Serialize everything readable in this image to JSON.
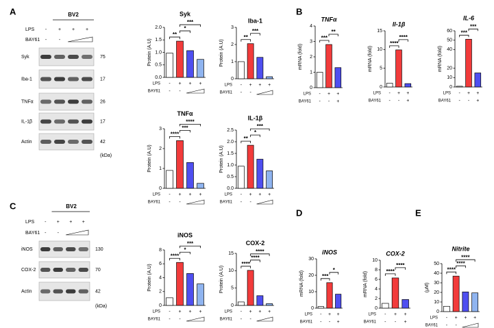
{
  "panel_labels": [
    "A",
    "B",
    "C",
    "D",
    "E"
  ],
  "blots": [
    {
      "cell_line": "BV2",
      "row_labels": [
        "LPS",
        "BAY61"
      ],
      "lps": [
        "-",
        "+",
        "+",
        "+"
      ],
      "bay61": [
        "-",
        "-",
        null,
        null
      ],
      "bands": [
        {
          "name": "Syk",
          "kda": 75
        },
        {
          "name": "Iba-1",
          "kda": 17
        },
        {
          "name": "TNFα",
          "kda": 26
        },
        {
          "name": "IL-1β",
          "kda": 17
        },
        {
          "name": "Actin",
          "kda": 42
        }
      ],
      "unit": "(kDa)"
    },
    {
      "cell_line": "BV2",
      "row_labels": [
        "LPS",
        "BAY61"
      ],
      "lps": [
        "-",
        "+",
        "+",
        "+"
      ],
      "bay61": [
        "-",
        "-",
        null,
        null
      ],
      "bands": [
        {
          "name": "iNOS",
          "kda": 130
        },
        {
          "name": "COX-2",
          "kda": 70
        },
        {
          "name": "Actin",
          "kda": 42
        }
      ],
      "unit": "(kDa)"
    }
  ],
  "chart_data": [
    {
      "type": "bar",
      "title": "Syk",
      "y_label": "Protein (A.U)",
      "row_labels": [
        "LPS",
        "BAY61"
      ],
      "lps": [
        "-",
        "+",
        "+",
        "+"
      ],
      "bay61": [
        "-",
        "-",
        null,
        null
      ],
      "values": [
        0.97,
        1.45,
        1.07,
        0.72
      ],
      "colors": [
        "#ffffff",
        "#f23b3b",
        "#4f4ff0",
        "#8fb4f0"
      ],
      "ylim": [
        0,
        2
      ],
      "yticks": [
        {
          "value": 0,
          "label": "0.0"
        },
        {
          "value": 0.5,
          "label": "0.5"
        },
        {
          "value": 1,
          "label": "1.0"
        },
        {
          "value": 1.5,
          "label": "1.5"
        },
        {
          "value": 2,
          "label": "2.0"
        }
      ],
      "annotations": [
        "**",
        "*",
        "***"
      ]
    },
    {
      "type": "bar",
      "title": "Iba-1",
      "y_label": "Protein (A.U)",
      "row_labels": [
        "LPS",
        "BAY61"
      ],
      "lps": [
        "-",
        "+",
        "+",
        "+"
      ],
      "bay61": [
        "-",
        "-",
        null,
        null
      ],
      "values": [
        1.0,
        2.05,
        1.25,
        0.12
      ],
      "colors": [
        "#ffffff",
        "#f23b3b",
        "#4f4ff0",
        "#8fb4f0"
      ],
      "ylim": [
        0,
        3
      ],
      "yticks": [
        0,
        1,
        2,
        3
      ],
      "annotations": [
        "**",
        "***"
      ]
    },
    {
      "type": "bar",
      "title": "TNFα",
      "y_label": "Protein (A.U)",
      "row_labels": [
        "LPS",
        "BAY61"
      ],
      "lps": [
        "-",
        "+",
        "+",
        "+"
      ],
      "bay61": [
        "-",
        "-",
        null,
        null
      ],
      "values": [
        0.9,
        2.4,
        1.3,
        0.25
      ],
      "colors": [
        "#ffffff",
        "#f23b3b",
        "#4f4ff0",
        "#8fb4f0"
      ],
      "ylim": [
        0,
        3
      ],
      "yticks": [
        0,
        1,
        2,
        3
      ],
      "annotations": [
        "****",
        "***",
        "****"
      ]
    },
    {
      "type": "bar",
      "title": "IL-1β",
      "y_label": "Protein (A.U)",
      "row_labels": [
        "LPS",
        "BAY61"
      ],
      "lps": [
        "-",
        "+",
        "+",
        "+"
      ],
      "bay61": [
        "-",
        "-",
        null,
        null
      ],
      "values": [
        0.95,
        1.85,
        1.25,
        0.75
      ],
      "colors": [
        "#ffffff",
        "#f23b3b",
        "#4f4ff0",
        "#8fb4f0"
      ],
      "ylim": [
        0,
        2.5
      ],
      "yticks": [
        {
          "value": 0,
          "label": "0.0"
        },
        {
          "value": 0.5,
          "label": "0.5"
        },
        {
          "value": 1,
          "label": "1.0"
        },
        {
          "value": 1.5,
          "label": "1.5"
        },
        {
          "value": 2,
          "label": "2.0"
        },
        {
          "value": 2.5,
          "label": "2.5"
        }
      ],
      "annotations": [
        "**",
        "*",
        "***"
      ]
    },
    {
      "type": "bar",
      "title": "TNFα",
      "italic_title": true,
      "y_label": "mRNA (fold)",
      "row_labels": [
        "LPS",
        "BAY61"
      ],
      "lps": [
        "-",
        "+",
        "+"
      ],
      "bay61": [
        "-",
        "-",
        "+"
      ],
      "values": [
        1.0,
        2.8,
        1.3
      ],
      "colors": [
        "#ffffff",
        "#f23b3b",
        "#4f4ff0"
      ],
      "ylim": [
        0,
        4
      ],
      "yticks": [
        0,
        1,
        2,
        3,
        4
      ],
      "annotations": [
        "***",
        "**"
      ]
    },
    {
      "type": "bar",
      "title": "Il-1β",
      "italic_title": true,
      "y_label": "mRNA (fold)",
      "row_labels": [
        "LPS",
        "BAY61"
      ],
      "lps": [
        "-",
        "+",
        "+"
      ],
      "bay61": [
        "-",
        "-",
        "+"
      ],
      "values": [
        1.0,
        9.9,
        0.9
      ],
      "colors": [
        "#ffffff",
        "#f23b3b",
        "#4f4ff0"
      ],
      "ylim": [
        0,
        15
      ],
      "yticks": [
        0,
        5,
        10,
        15
      ],
      "annotations": [
        "****",
        "****"
      ]
    },
    {
      "type": "bar",
      "title": "IL-6",
      "italic_title": true,
      "y_label": "mRNA (fold)",
      "row_labels": [
        "LPS",
        "BAY61"
      ],
      "lps": [
        "-",
        "+",
        "+"
      ],
      "bay61": [
        "-",
        "-",
        "+"
      ],
      "values": [
        0.8,
        51,
        15
      ],
      "colors": [
        "#ffffff",
        "#f23b3b",
        "#4f4ff0"
      ],
      "ylim": [
        0,
        60
      ],
      "yticks": [
        0,
        10,
        20,
        40,
        50,
        60
      ],
      "annotations": [
        "***",
        "***"
      ]
    },
    {
      "type": "bar",
      "title": "iNOS",
      "y_label": "Protein (A.U)",
      "row_labels": [
        "LPS",
        "BAY61"
      ],
      "lps": [
        "-",
        "+",
        "+",
        "+"
      ],
      "bay61": [
        "-",
        "-",
        null,
        null
      ],
      "values": [
        1.1,
        6.2,
        4.6,
        3.1
      ],
      "colors": [
        "#ffffff",
        "#f23b3b",
        "#4f4ff0",
        "#8fb4f0"
      ],
      "ylim": [
        0,
        8
      ],
      "yticks": [
        0,
        2,
        4,
        6,
        8
      ],
      "annotations": [
        "****",
        "*",
        "***"
      ]
    },
    {
      "type": "bar",
      "title": "COX-2",
      "y_label": "Protein (A.U)",
      "row_labels": [
        "LPS",
        "BAY61"
      ],
      "lps": [
        "-",
        "+",
        "+",
        "+"
      ],
      "bay61": [
        "-",
        "-",
        null,
        null
      ],
      "values": [
        1.0,
        10.1,
        2.8,
        0.5
      ],
      "colors": [
        "#ffffff",
        "#f23b3b",
        "#4f4ff0",
        "#8fb4f0"
      ],
      "ylim": [
        0,
        15
      ],
      "yticks": [
        0,
        5,
        10,
        15
      ],
      "annotations": [
        "****",
        "****",
        "****"
      ]
    },
    {
      "type": "bar",
      "title": "iNOS",
      "italic_title": true,
      "y_label": "mRNA (fold)",
      "row_labels": [
        "LPS",
        "BAY61"
      ],
      "lps": [
        "-",
        "+",
        "+"
      ],
      "bay61": [
        "-",
        "-",
        "+"
      ],
      "values": [
        1.0,
        15.5,
        8.5
      ],
      "colors": [
        "#ffffff",
        "#f23b3b",
        "#4f4ff0"
      ],
      "ylim": [
        0,
        30
      ],
      "yticks": [
        0,
        10,
        20,
        30
      ],
      "annotations": [
        "***",
        "*"
      ]
    },
    {
      "type": "bar",
      "title": "COX-2",
      "italic_title": true,
      "y_label": "mRNA (fold)",
      "row_labels": [
        "LPS",
        "BAY61"
      ],
      "lps": [
        "-",
        "+",
        "+"
      ],
      "bay61": [
        "-",
        "-",
        "+"
      ],
      "values": [
        1.0,
        6.3,
        1.8
      ],
      "colors": [
        "#ffffff",
        "#f23b3b",
        "#4f4ff0"
      ],
      "ylim": [
        0,
        10
      ],
      "yticks": [
        0,
        2,
        4,
        6,
        8,
        10
      ],
      "annotations": [
        "****",
        "****"
      ]
    },
    {
      "type": "bar",
      "title": "Nitrite",
      "italic_title": true,
      "y_label": "(μM)",
      "row_labels": [
        "LPS",
        "BAY61"
      ],
      "lps": [
        "-",
        "+",
        "+",
        "+"
      ],
      "bay61": [
        "-",
        "-",
        null,
        null
      ],
      "values": [
        5.5,
        37,
        20.5,
        19.5
      ],
      "colors": [
        "#ffffff",
        "#f23b3b",
        "#4f4ff0",
        "#8fb4f0"
      ],
      "ylim": [
        0,
        50
      ],
      "yticks": [
        0,
        10,
        20,
        30,
        40,
        50
      ],
      "annotations": [
        "****",
        "****",
        "****"
      ]
    }
  ]
}
